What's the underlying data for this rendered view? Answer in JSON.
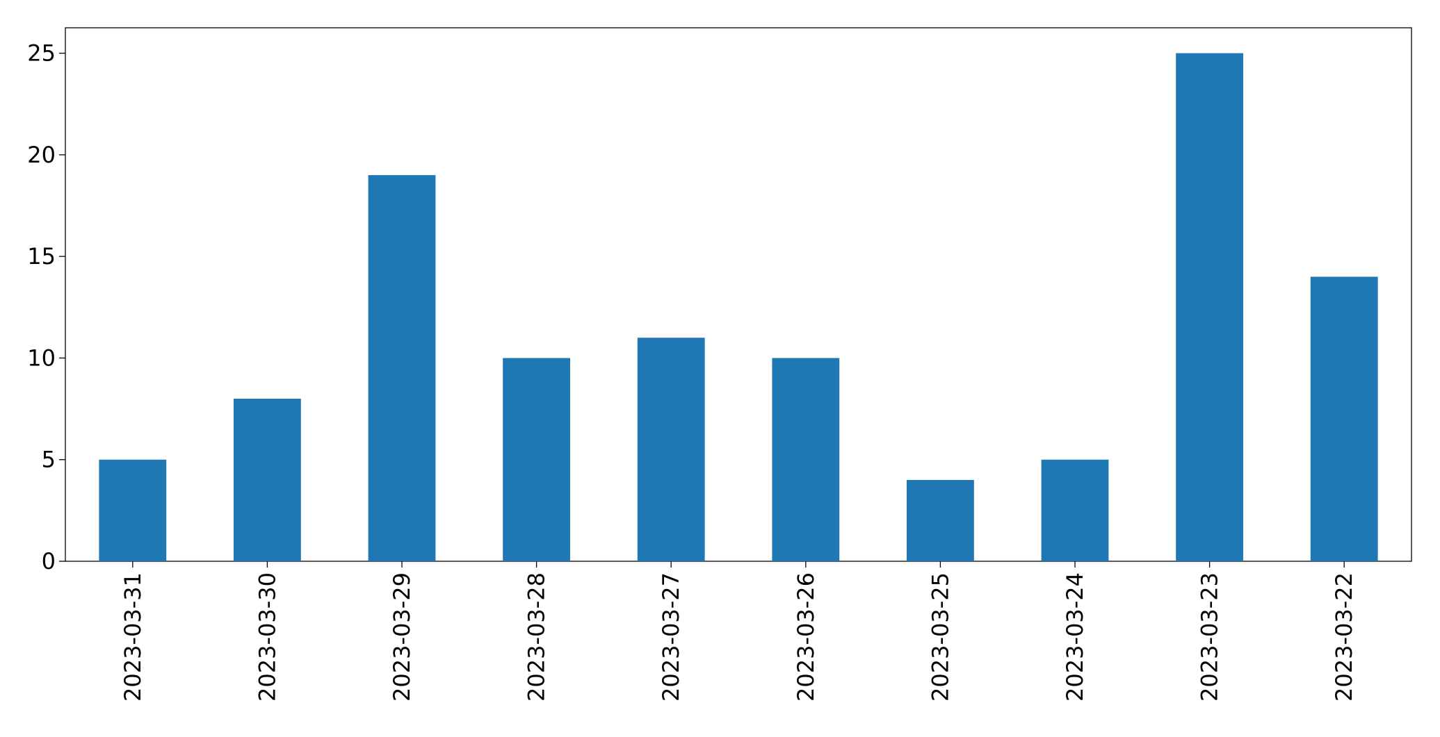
{
  "chart_data": {
    "type": "bar",
    "categories": [
      "2023-03-31",
      "2023-03-30",
      "2023-03-29",
      "2023-03-28",
      "2023-03-27",
      "2023-03-26",
      "2023-03-25",
      "2023-03-24",
      "2023-03-23",
      "2023-03-22"
    ],
    "values": [
      5,
      8,
      19,
      10,
      11,
      10,
      4,
      5,
      25,
      14
    ],
    "color": "#1f77b4",
    "ylim": [
      0,
      26.25
    ],
    "yticks": [
      0,
      5,
      10,
      15,
      20,
      25
    ],
    "grid": false
  }
}
